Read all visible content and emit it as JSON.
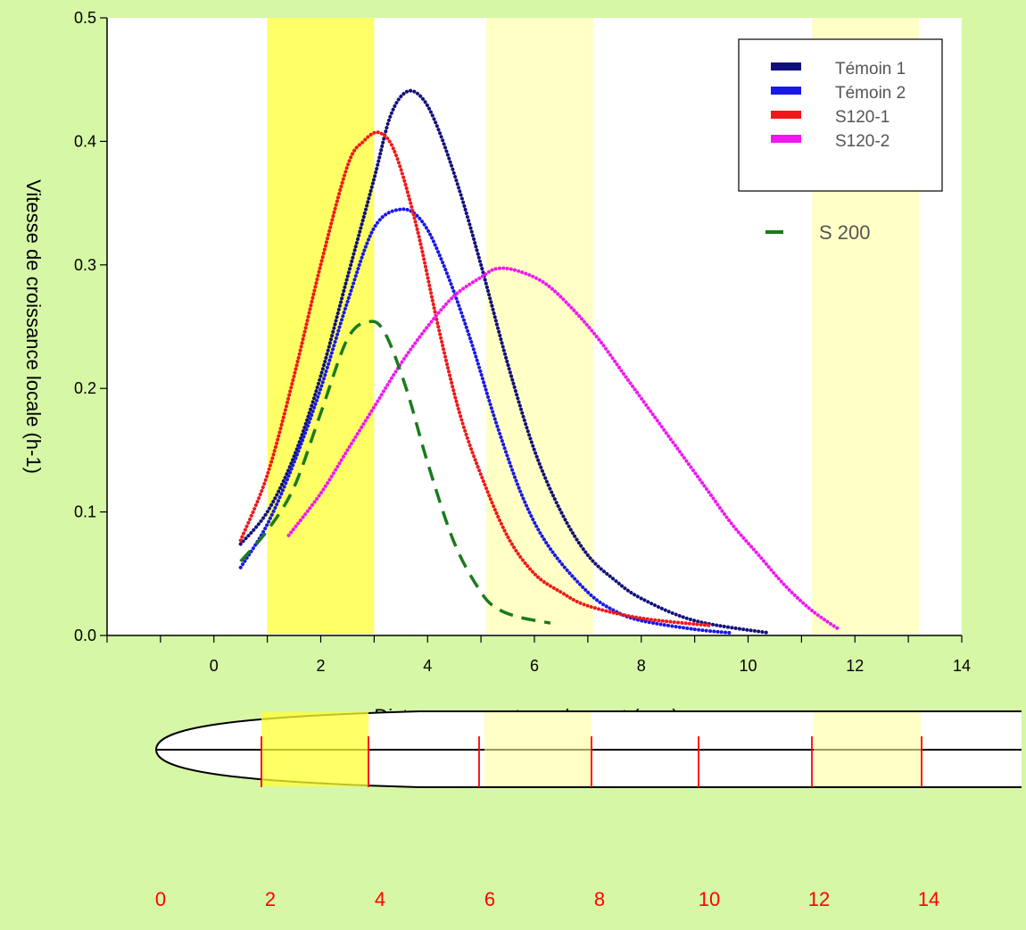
{
  "chart_data": {
    "type": "line",
    "xlabel": "Distance au centre quiescent (mm)",
    "ylabel": "Vitesse de croissance locale (h-1)",
    "xlim": [
      -2,
      14
    ],
    "ylim": [
      0,
      0.5
    ],
    "x_ticks": [
      0,
      2,
      4,
      6,
      8,
      10,
      12,
      14
    ],
    "y_ticks": [
      0.0,
      0.1,
      0.2,
      0.3,
      0.4,
      0.5
    ],
    "y_tick_labels": [
      "0.0",
      "0.1",
      "0.2",
      "0.3",
      "0.4",
      "0.5"
    ],
    "grid": false,
    "legend_position": "top-right",
    "series": [
      {
        "name": "Témoin 1",
        "color": "#10107a",
        "style": "dotted-solid",
        "x": [
          0.5,
          1.0,
          1.5,
          2.0,
          2.5,
          3.0,
          3.3,
          3.6,
          3.9,
          4.2,
          4.6,
          5.0,
          5.5,
          6.0,
          6.5,
          7.0,
          7.5,
          8.0,
          9.0,
          10.4
        ],
        "y": [
          0.074,
          0.1,
          0.145,
          0.21,
          0.29,
          0.37,
          0.42,
          0.44,
          0.435,
          0.41,
          0.36,
          0.3,
          0.22,
          0.15,
          0.1,
          0.065,
          0.045,
          0.03,
          0.012,
          0.002
        ]
      },
      {
        "name": "Témoin 2",
        "color": "#1818e8",
        "style": "dotted-solid",
        "x": [
          0.5,
          1.0,
          1.5,
          2.0,
          2.5,
          3.0,
          3.5,
          3.9,
          4.3,
          4.8,
          5.3,
          5.8,
          6.3,
          7.0,
          7.5,
          8.0,
          9.0,
          9.7
        ],
        "y": [
          0.055,
          0.09,
          0.14,
          0.2,
          0.27,
          0.33,
          0.345,
          0.335,
          0.3,
          0.24,
          0.17,
          0.11,
          0.07,
          0.035,
          0.02,
          0.012,
          0.005,
          0.002
        ]
      },
      {
        "name": "S120-1",
        "color": "#f01818",
        "style": "dotted-solid",
        "x": [
          0.5,
          1.0,
          1.5,
          2.0,
          2.5,
          2.8,
          3.1,
          3.4,
          3.8,
          4.2,
          4.6,
          5.0,
          5.5,
          6.0,
          6.5,
          7.0,
          8.0,
          9.3
        ],
        "y": [
          0.077,
          0.13,
          0.21,
          0.3,
          0.38,
          0.4,
          0.407,
          0.39,
          0.33,
          0.25,
          0.18,
          0.13,
          0.08,
          0.05,
          0.035,
          0.024,
          0.014,
          0.008
        ]
      },
      {
        "name": "S120-2",
        "color": "#f018f0",
        "style": "dotted-solid",
        "x": [
          1.4,
          2.0,
          2.5,
          3.0,
          3.5,
          4.0,
          4.5,
          5.0,
          5.3,
          5.7,
          6.2,
          6.7,
          7.2,
          7.7,
          8.2,
          8.7,
          9.2,
          9.7,
          10.2,
          10.7,
          11.2,
          11.7
        ],
        "y": [
          0.081,
          0.115,
          0.15,
          0.185,
          0.22,
          0.25,
          0.275,
          0.29,
          0.297,
          0.295,
          0.285,
          0.265,
          0.24,
          0.21,
          0.18,
          0.15,
          0.12,
          0.09,
          0.065,
          0.04,
          0.02,
          0.005
        ]
      },
      {
        "name": "S 200",
        "color": "#1b7a1b",
        "style": "dashed",
        "x": [
          0.5,
          1.0,
          1.5,
          2.0,
          2.5,
          2.9,
          3.2,
          3.6,
          4.0,
          4.5,
          5.0,
          5.3,
          5.7,
          6.3
        ],
        "y": [
          0.06,
          0.085,
          0.12,
          0.18,
          0.24,
          0.254,
          0.245,
          0.2,
          0.14,
          0.075,
          0.035,
          0.022,
          0.015,
          0.01
        ]
      }
    ],
    "highlight_bands": [
      {
        "from": 1.0,
        "to": 3.0,
        "color": "#ffff33",
        "opacity": 0.75
      },
      {
        "from": 5.1,
        "to": 7.1,
        "color": "#ffffa0",
        "opacity": 0.6
      },
      {
        "from": 11.2,
        "to": 13.2,
        "color": "#ffffa0",
        "opacity": 0.6
      }
    ],
    "root_diagram": {
      "scale_labels": [
        "0",
        "2",
        "4",
        "6",
        "8",
        "10",
        "12",
        "14"
      ],
      "scale_color": "#ff0000"
    }
  }
}
